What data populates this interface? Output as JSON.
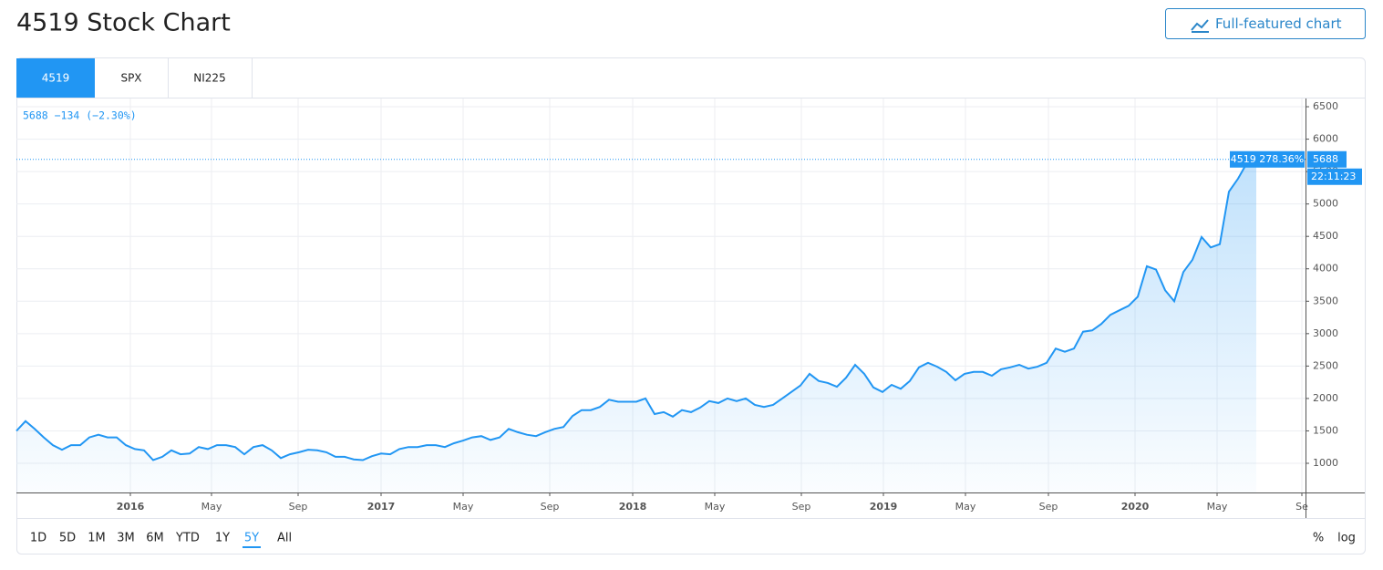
{
  "header": {
    "title": "4519 Stock Chart",
    "button": "Full-featured chart"
  },
  "tabs": [
    "4519",
    "SPX",
    "NI225"
  ],
  "chart_data": {
    "type": "line",
    "legend": "5688 −134 (−2.30%)",
    "series": [
      {
        "name": "4519",
        "color": "#2196f3",
        "values": [
          1500,
          1650,
          1530,
          1400,
          1280,
          1210,
          1280,
          1280,
          1400,
          1440,
          1400,
          1400,
          1280,
          1220,
          1200,
          1050,
          1100,
          1200,
          1140,
          1150,
          1250,
          1220,
          1280,
          1280,
          1250,
          1140,
          1250,
          1280,
          1200,
          1080,
          1140,
          1170,
          1210,
          1200,
          1170,
          1100,
          1100,
          1060,
          1050,
          1110,
          1150,
          1140,
          1220,
          1250,
          1250,
          1280,
          1280,
          1250,
          1310,
          1350,
          1400,
          1420,
          1360,
          1400,
          1530,
          1480,
          1440,
          1420,
          1480,
          1530,
          1560,
          1730,
          1820,
          1820,
          1870,
          1980,
          1950,
          1950,
          1950,
          2000,
          1760,
          1790,
          1720,
          1820,
          1790,
          1860,
          1960,
          1930,
          2000,
          1960,
          2000,
          1900,
          1870,
          1900,
          2000,
          2100,
          2200,
          2380,
          2270,
          2240,
          2180,
          2320,
          2520,
          2380,
          2170,
          2100,
          2210,
          2150,
          2270,
          2480,
          2550,
          2490,
          2410,
          2280,
          2380,
          2410,
          2410,
          2350,
          2450,
          2480,
          2520,
          2460,
          2490,
          2550,
          2770,
          2720,
          2770,
          3030,
          3050,
          3150,
          3290,
          3360,
          3430,
          3570,
          4040,
          3990,
          3670,
          3500,
          3950,
          4140,
          4490,
          4330,
          4380,
          5190,
          5390,
          5640,
          5688
        ]
      }
    ],
    "last_label": "4519 278.36%",
    "last_value_label": "5688",
    "time": "22:11:23",
    "xlim": [
      0,
      141.4
    ],
    "xticks": [
      {
        "value": 12.5,
        "label": "2016"
      },
      {
        "value": 21.4,
        "label": "May"
      },
      {
        "value": 30.9,
        "label": "Sep"
      },
      {
        "value": 40,
        "label": "2017"
      },
      {
        "value": 49,
        "label": "May"
      },
      {
        "value": 58.5,
        "label": "Sep"
      },
      {
        "value": 67.6,
        "label": "2018"
      },
      {
        "value": 76.6,
        "label": "May"
      },
      {
        "value": 86.1,
        "label": "Sep"
      },
      {
        "value": 95.1,
        "label": "2019"
      },
      {
        "value": 104.1,
        "label": "May"
      },
      {
        "value": 113.2,
        "label": "Sep"
      },
      {
        "value": 122.7,
        "label": "2020"
      },
      {
        "value": 131.7,
        "label": "May"
      },
      {
        "value": 141,
        "label": "Se"
      }
    ],
    "ylim": [
      550,
      6627
    ],
    "yticks": [
      1000,
      1500,
      2000,
      2500,
      3000,
      3500,
      4000,
      4500,
      5000,
      5500,
      6000,
      6500
    ],
    "grid": true
  },
  "ranges": [
    "1D",
    "5D",
    "1M",
    "3M",
    "6M",
    "YTD",
    "1Y",
    "5Y",
    "All"
  ],
  "scale_options": [
    "%",
    "log"
  ]
}
